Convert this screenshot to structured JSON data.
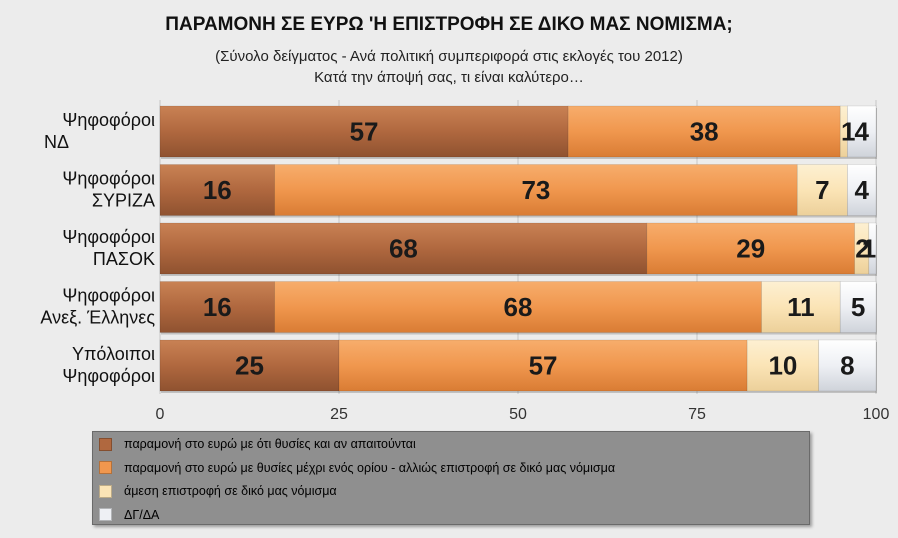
{
  "chart_data": {
    "type": "bar",
    "orientation": "horizontal",
    "stacked": true,
    "title": "ΠΑΡΑΜΟΝΗ ΣΕ ΕΥΡΩ 'Η ΕΠΙΣΤΡΟΦΗ ΣΕ ΔΙΚΟ ΜΑΣ ΝΟΜΙΣΜΑ;",
    "subtitle_lines": [
      "(Σύνολο δείγματος - Ανά πολιτική συμπεριφορά στις εκλογές του 2012)",
      "Κατά την άποψή σας, τι είναι καλύτερο…"
    ],
    "categories": [
      [
        "Ψηφοφόροι",
        "ΝΔ"
      ],
      [
        "Ψηφοφόροι",
        "ΣΥΡΙΖΑ"
      ],
      [
        "Ψηφοφόροι",
        "ΠΑΣΟΚ"
      ],
      [
        "Ψηφοφόροι",
        "Ανεξ. Έλληνες"
      ],
      [
        "Υπόλοιποι",
        "Ψηφοφόροι"
      ]
    ],
    "series": [
      {
        "name": "παραμονή στο ευρώ με ότι θυσίες και αν απαιτούνται",
        "color": "#b0683f",
        "values": [
          57,
          16,
          68,
          16,
          25
        ]
      },
      {
        "name": "παραμονή στο ευρώ με θυσίες μέχρι ενός ορίου - αλλιώς επιστροφή σε δικό μας νόμισμα",
        "color": "#f0974e",
        "values": [
          38,
          73,
          29,
          68,
          57
        ]
      },
      {
        "name": "άμεση επιστροφή σε δικό μας νόμισμα",
        "color": "#fbe4b6",
        "values": [
          1,
          7,
          2,
          11,
          10
        ]
      },
      {
        "name": "ΔΓ/ΔΑ",
        "color": "#eef0f4",
        "values": [
          4,
          4,
          1,
          5,
          8
        ]
      }
    ],
    "data_labels": [
      [
        "57",
        "38",
        "1",
        "4"
      ],
      [
        "16",
        "73",
        "7",
        "4"
      ],
      [
        "68",
        "29",
        "2",
        "1"
      ],
      [
        "16",
        "68",
        "11",
        "5"
      ],
      [
        "25",
        "57",
        "10",
        "8"
      ]
    ],
    "x_ticks": [
      "0",
      "25",
      "50",
      "75",
      "100"
    ],
    "xlim": [
      0,
      100
    ],
    "legend_position": "bottom"
  }
}
